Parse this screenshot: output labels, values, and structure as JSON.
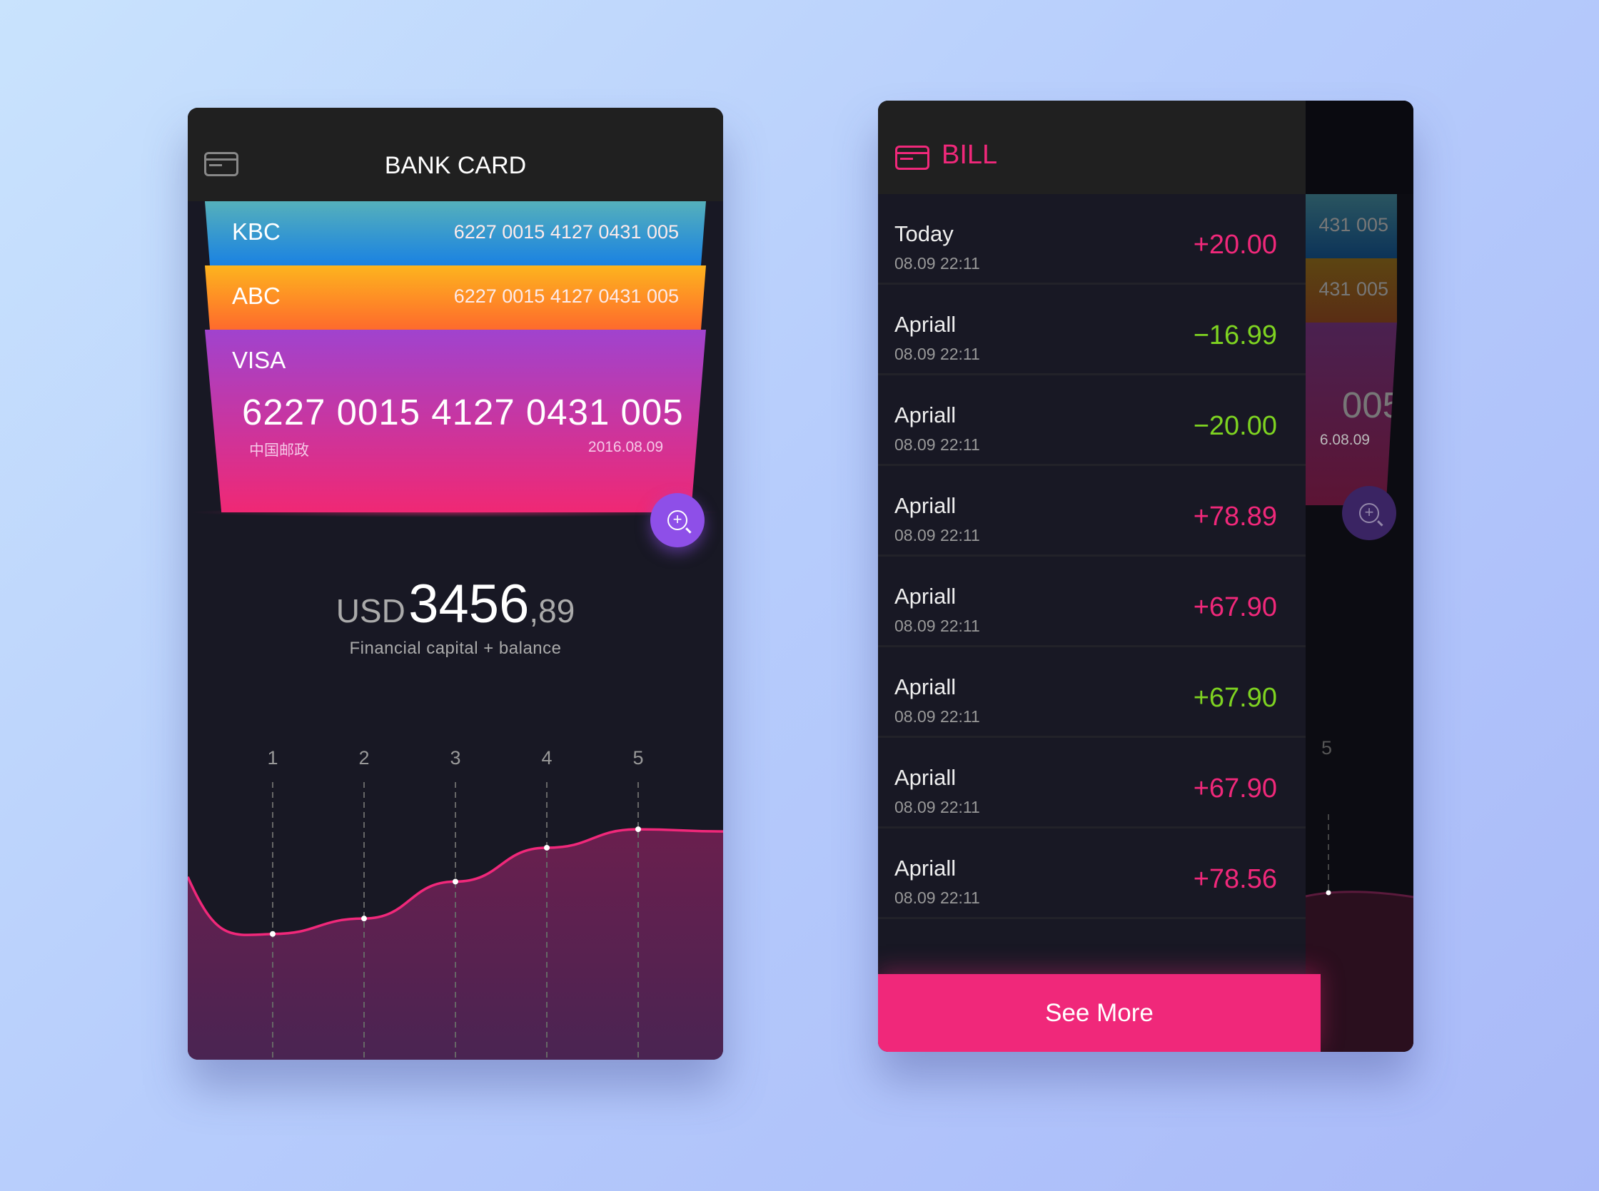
{
  "bank": {
    "title": "BANK CARD",
    "cards": [
      {
        "name": "KBC",
        "number": "6227 0015 4127 0431 005"
      },
      {
        "name": "ABC",
        "number": "6227 0015 4127 0431 005"
      },
      {
        "name": "VISA",
        "number": "6227 0015 4127 0431 005",
        "bank": "中国邮政",
        "date": "2016.08.09"
      }
    ],
    "balance": {
      "currency": "USD",
      "integer": "3456",
      "decimal": ",89",
      "caption": "Financial capital + balance"
    }
  },
  "chart_data": {
    "type": "area",
    "categories": [
      "1",
      "2",
      "3",
      "4",
      "5"
    ],
    "values": [
      20,
      25,
      37,
      48,
      54
    ],
    "ylim": [
      0,
      100
    ],
    "title": "",
    "xlabel": "",
    "ylabel": ""
  },
  "bill": {
    "title": "BILL",
    "rows": [
      {
        "name": "Today",
        "date": "08.09  22:11",
        "amount": "+20.00",
        "color": "#f0287a"
      },
      {
        "name": "Apriall",
        "date": "08.09  22:11",
        "amount": "−16.99",
        "color": "#7ed321"
      },
      {
        "name": "Apriall",
        "date": "08.09  22:11",
        "amount": "−20.00",
        "color": "#7ed321"
      },
      {
        "name": "Apriall",
        "date": "08.09  22:11",
        "amount": "+78.89",
        "color": "#f0287a"
      },
      {
        "name": "Apriall",
        "date": "08.09  22:11",
        "amount": "+67.90",
        "color": "#f0287a"
      },
      {
        "name": "Apriall",
        "date": "08.09  22:11",
        "amount": "+67.90",
        "color": "#7ed321"
      },
      {
        "name": "Apriall",
        "date": "08.09  22:11",
        "amount": "+67.90",
        "color": "#f0287a"
      },
      {
        "name": "Apriall",
        "date": "08.09  22:11",
        "amount": "+78.56",
        "color": "#f0287a"
      }
    ],
    "see_more": "See More",
    "behind": {
      "n1": "431 005",
      "n2": "431 005",
      "n3": "005",
      "d": "6.08.09",
      "lbl": "5"
    }
  }
}
